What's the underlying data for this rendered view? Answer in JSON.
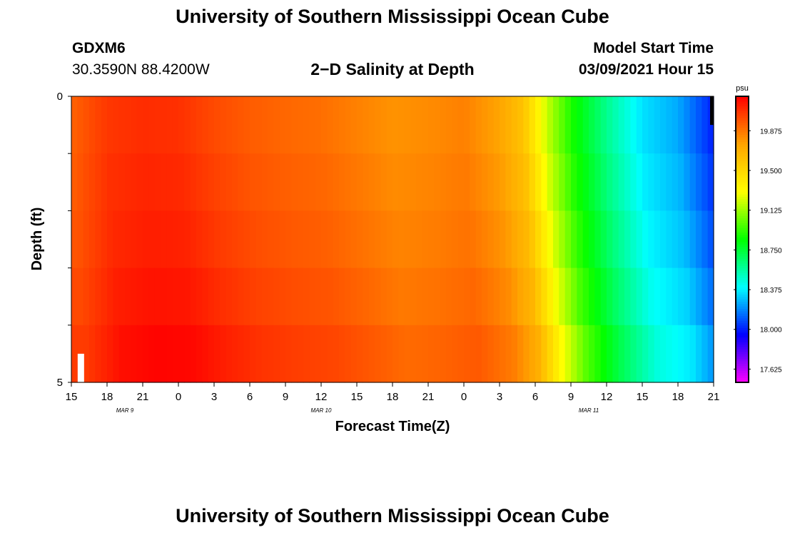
{
  "header": {
    "title": "University of Southern Mississippi Ocean Cube",
    "station_id": "GDXM6",
    "coordinates": "30.3590N 88.4200W",
    "subtitle": "2−D Salinity at Depth",
    "model_start_label": "Model Start Time",
    "model_start_value": "03/09/2021 Hour 15"
  },
  "footer": {
    "title": "University of Southern Mississippi Ocean Cube"
  },
  "colors": {
    "palette": [
      "#ff00ff",
      "#0000ff",
      "#00ffff",
      "#00ff00",
      "#ffff00",
      "#ffa500",
      "#ff0000"
    ],
    "frame": "#000000",
    "marker_white": "#ffffff"
  },
  "chart_data": {
    "type": "heatmap",
    "title": "2−D Salinity at Depth",
    "xlabel": "Forecast Time(Z)",
    "ylabel": "Depth (ft)",
    "x_hours_since_start": [
      0,
      54
    ],
    "x_tick_labels": [
      "15",
      "18",
      "21",
      "0",
      "3",
      "6",
      "9",
      "12",
      "15",
      "18",
      "21",
      "0",
      "3",
      "6",
      "9",
      "12",
      "15",
      "18",
      "21"
    ],
    "date_labels": [
      {
        "text": "MAR 9",
        "hour": 4.5
      },
      {
        "text": "MAR 10",
        "hour": 21
      },
      {
        "text": "MAR 11",
        "hour": 43.5
      }
    ],
    "y_tick_labels": [
      "0",
      "5"
    ],
    "ylim": [
      0,
      5
    ],
    "colorbar": {
      "unit": "psu",
      "min": 17.5,
      "max": 20.2,
      "tick_values": [
        19.875,
        19.5,
        19.125,
        18.75,
        18.375,
        18.0,
        17.625
      ],
      "tick_labels": [
        "19.875",
        "19.500",
        "19.125",
        "18.750",
        "18.375",
        "18.000",
        "17.625"
      ]
    },
    "depth_layers": [
      0,
      1,
      2,
      3,
      4,
      5
    ],
    "time_hours": [
      0,
      3,
      6,
      9,
      12,
      15,
      18,
      21,
      24,
      27,
      30,
      33,
      36,
      38,
      39,
      40,
      42,
      45,
      48,
      51,
      54
    ],
    "salinity_profile": [
      19.93,
      20.05,
      20.08,
      20.07,
      20.0,
      19.95,
      19.92,
      19.9,
      19.85,
      19.8,
      19.82,
      19.85,
      19.75,
      19.6,
      19.4,
      19.2,
      18.9,
      18.6,
      18.35,
      18.25,
      18.0
    ],
    "layer_offsets": [
      0.0,
      0.02,
      0.04,
      0.07,
      0.11,
      0.16
    ],
    "layer_time_shift_hours": [
      0.0,
      0.2,
      0.5,
      0.8,
      1.2,
      1.8
    ],
    "markers": [
      {
        "color": "white",
        "hour": 0.8,
        "depth_start": 4.5,
        "depth_end": 5.0
      },
      {
        "color": "black",
        "hour": 53.85,
        "depth_start": 0.0,
        "depth_end": 0.5
      }
    ]
  }
}
